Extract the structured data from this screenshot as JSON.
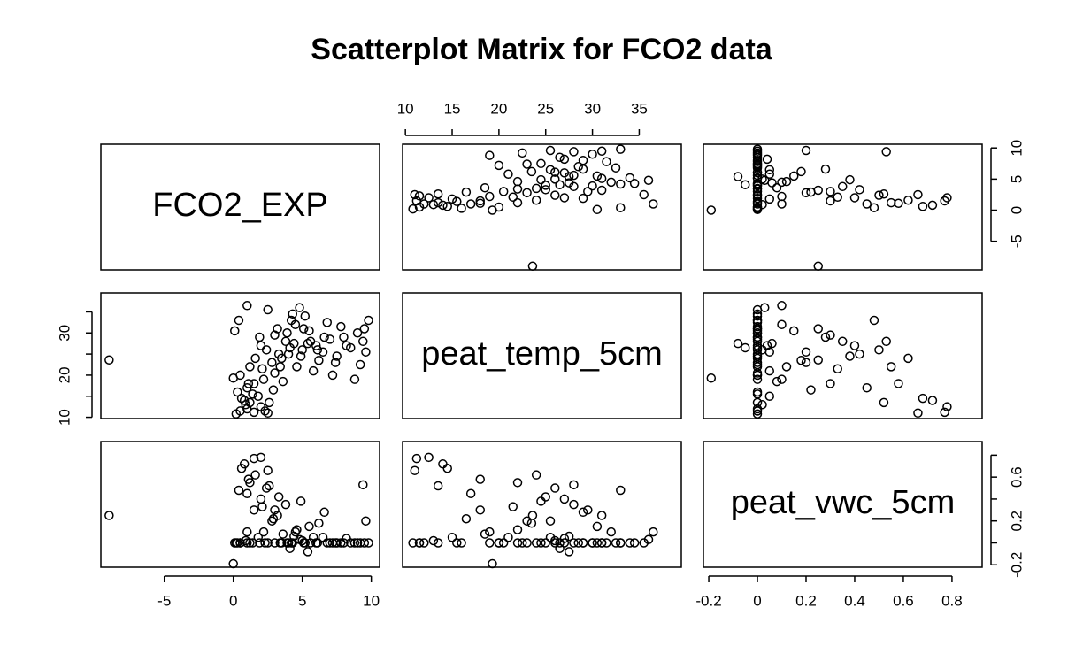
{
  "chart_data": {
    "type": "scatter_matrix",
    "title": "Scatterplot Matrix for FCO2 data",
    "color": "#000000",
    "series": [
      {
        "name": "FCO2_EXP",
        "lim": [
          -9.6,
          10.6
        ],
        "ticks": [
          -5,
          0,
          5,
          10
        ],
        "values": [
          -9,
          0.0,
          0.2,
          0.5,
          1.0,
          1.5,
          1.2,
          0.8,
          2.0,
          1.8,
          0.3,
          2.5,
          1.0,
          1.5,
          0.5,
          2.2,
          3.0,
          1.2,
          2.8,
          3.5,
          4.0,
          5.0,
          6.0,
          7.0,
          8.0,
          9.0,
          9.5,
          4.5,
          3.8,
          5.5,
          6.5,
          7.5,
          8.5,
          2.0,
          3.0,
          4.2,
          5.2,
          4.8,
          1.0,
          2.5,
          6.8,
          9.8,
          0.4,
          1.6,
          2.4,
          3.2,
          4.6,
          5.8,
          7.2,
          8.8,
          9.2,
          6.2,
          3.6,
          2.9,
          1.4,
          0.9,
          4.4,
          5.6,
          7.8,
          8.2,
          3.3,
          2.1,
          6.6,
          4.9,
          9.6,
          1.1,
          0.6,
          2.6,
          3.9,
          5.1,
          9.4,
          4.3,
          3.4,
          6.1,
          1.9,
          0.1,
          7.4,
          2.3,
          4.1,
          5.4
        ]
      },
      {
        "name": "peat_temp_5cm",
        "lim": [
          9.7,
          39.5
        ],
        "ticks": [
          10,
          15,
          20,
          25,
          30,
          35
        ],
        "values": [
          23.6,
          19.3,
          10.8,
          11.5,
          12.0,
          11.2,
          13.5,
          14.0,
          12.5,
          15.0,
          16.0,
          11.0,
          17.0,
          18.0,
          20.0,
          19.0,
          20.5,
          22.0,
          23.0,
          24.0,
          25.0,
          26.0,
          27.0,
          28.5,
          29.0,
          30.0,
          31.0,
          32.0,
          28.0,
          30.5,
          25.5,
          24.5,
          26.5,
          27.0,
          29.5,
          33.0,
          34.0,
          36.0,
          36.5,
          35.5,
          32.5,
          33.0,
          33.0,
          24.0,
          26.0,
          31.0,
          22.0,
          21.0,
          20.0,
          19.0,
          22.5,
          23.5,
          18.5,
          16.5,
          15.5,
          13.0,
          27.5,
          28.0,
          31.5,
          27.0,
          25.0,
          21.5,
          29.0,
          24.5,
          25.5,
          18.0,
          14.5,
          13.5,
          30.0,
          31.0,
          28.0,
          34.5,
          22.0,
          26.0,
          29.0,
          30.5,
          23.0,
          11.5,
          26.5,
          27.5
        ]
      },
      {
        "name": "peat_vwc_5cm",
        "lim": [
          -0.222,
          0.924
        ],
        "ticks": [
          -0.2,
          0,
          0.2,
          0.4,
          0.6,
          0.8
        ],
        "values": [
          0.25,
          -0.19,
          0.0,
          0.0,
          0.0,
          0.77,
          0.0,
          0.72,
          0.78,
          0.05,
          0.0,
          0.66,
          0.45,
          0.3,
          0.0,
          0.1,
          0.0,
          0.55,
          0.2,
          0.0,
          0.0,
          0.02,
          0.0,
          0.0,
          0.0,
          0.0,
          0.0,
          0.1,
          0.35,
          0.15,
          0.05,
          0.0,
          0.0,
          0.4,
          0.3,
          0.0,
          0.0,
          0.03,
          0.1,
          0.0,
          0.0,
          0.0,
          0.48,
          0.62,
          0.5,
          0.25,
          0.12,
          0.05,
          0.0,
          0.0,
          0.0,
          0.18,
          0.08,
          0.22,
          0.0,
          0.02,
          0.06,
          0.0,
          0.0,
          0.04,
          0.42,
          0.33,
          0.28,
          0.38,
          0.2,
          0.58,
          0.68,
          0.52,
          0.0,
          0.0,
          0.53,
          0.0,
          0.0,
          0.0,
          0.0,
          0.0,
          0.0,
          0.0,
          -0.05,
          -0.08
        ]
      }
    ]
  }
}
